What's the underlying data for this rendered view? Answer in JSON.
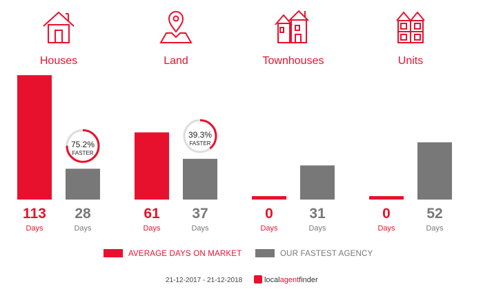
{
  "colors": {
    "market": "#e8112d",
    "agency": "#787878"
  },
  "categories": [
    {
      "label": "Houses",
      "icon": "house-icon"
    },
    {
      "label": "Land",
      "icon": "map-pin-icon"
    },
    {
      "label": "Townhouses",
      "icon": "townhouses-icon"
    },
    {
      "label": "Units",
      "icon": "units-building-icon"
    }
  ],
  "chart_data": {
    "type": "bar",
    "categories": [
      "Houses",
      "Land",
      "Townhouses",
      "Units"
    ],
    "series": [
      {
        "name": "AVERAGE DAYS ON MARKET",
        "values": [
          113,
          61,
          0,
          0
        ]
      },
      {
        "name": "OUR FASTEST AGENCY",
        "values": [
          28,
          37,
          31,
          52
        ]
      }
    ],
    "value_unit": "Days",
    "faster_badges": [
      {
        "category": "Houses",
        "percent": "75.2%",
        "label": "FASTER",
        "fraction": 0.752
      },
      {
        "category": "Land",
        "percent": "39.3%",
        "label": "FASTER",
        "fraction": 0.393
      }
    ]
  },
  "legend": {
    "market": "AVERAGE DAYS ON MARKET",
    "agency": "OUR FASTEST AGENCY"
  },
  "footer": {
    "date_range": "21-12-2017 - 21-12-2018",
    "logo_prefix": "local",
    "logo_mid": "agent",
    "logo_suffix": "finder"
  }
}
